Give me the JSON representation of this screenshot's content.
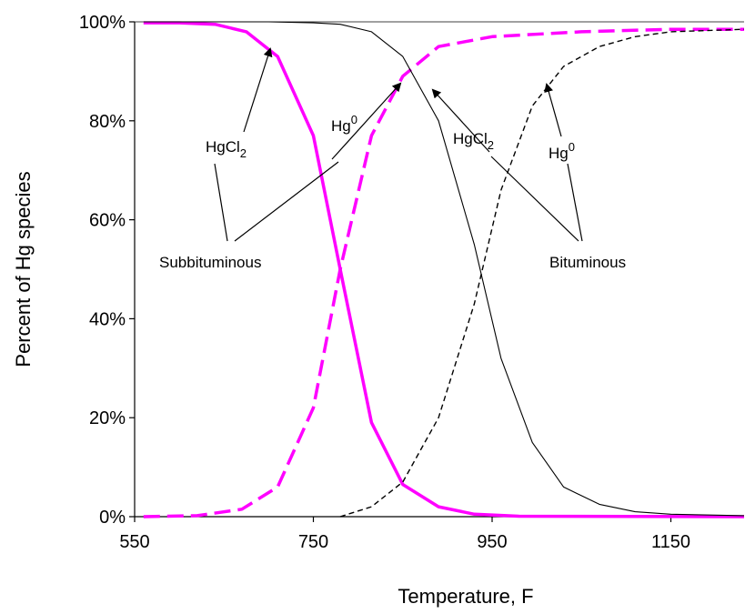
{
  "chart_data": {
    "type": "line",
    "xlabel": "Temperature, F",
    "ylabel": "Percent of Hg species",
    "xlim": [
      550,
      1250
    ],
    "ylim": [
      0,
      100
    ],
    "x_ticks": [
      "550",
      "750",
      "950",
      "1150"
    ],
    "x_tick_values": [
      550,
      750,
      950,
      1150
    ],
    "y_ticks": [
      "0%",
      "20%",
      "40%",
      "60%",
      "80%",
      "100%"
    ],
    "y_tick_values": [
      0,
      20,
      40,
      60,
      80,
      100
    ],
    "grid": false,
    "series": [
      {
        "key": "sub_hgcl2",
        "coal": "Subbituminous",
        "species": "HgCl2",
        "color": "#ff00ff",
        "style": "solid-thick",
        "points": [
          [
            560,
            99.8
          ],
          [
            600,
            99.8
          ],
          [
            640,
            99.5
          ],
          [
            675,
            98
          ],
          [
            710,
            93
          ],
          [
            750,
            77
          ],
          [
            780,
            50
          ],
          [
            815,
            19
          ],
          [
            850,
            6.5
          ],
          [
            890,
            2
          ],
          [
            930,
            0.5
          ],
          [
            980,
            0.1
          ],
          [
            1250,
            0
          ]
        ]
      },
      {
        "key": "sub_hg0",
        "coal": "Subbituminous",
        "species": "Hg0",
        "color": "#ff00ff",
        "style": "dashed-thick",
        "points": [
          [
            560,
            0
          ],
          [
            620,
            0.2
          ],
          [
            670,
            1.5
          ],
          [
            710,
            6
          ],
          [
            750,
            22
          ],
          [
            780,
            50
          ],
          [
            815,
            77
          ],
          [
            850,
            89
          ],
          [
            890,
            95
          ],
          [
            950,
            97
          ],
          [
            1050,
            98
          ],
          [
            1150,
            98.5
          ],
          [
            1250,
            98.5
          ]
        ]
      },
      {
        "key": "bit_hgcl2",
        "coal": "Bituminous",
        "species": "HgCl2",
        "color": "#000000",
        "style": "solid-thin",
        "points": [
          [
            560,
            100
          ],
          [
            700,
            100
          ],
          [
            750,
            99.8
          ],
          [
            780,
            99.5
          ],
          [
            815,
            98
          ],
          [
            850,
            93
          ],
          [
            890,
            80
          ],
          [
            930,
            55
          ],
          [
            960,
            32
          ],
          [
            995,
            15
          ],
          [
            1030,
            6
          ],
          [
            1070,
            2.5
          ],
          [
            1110,
            1
          ],
          [
            1150,
            0.5
          ],
          [
            1250,
            0.2
          ]
        ]
      },
      {
        "key": "bit_hg0",
        "coal": "Bituminous",
        "species": "Hg0",
        "color": "#000000",
        "style": "dashed-thin",
        "points": [
          [
            780,
            0
          ],
          [
            815,
            2
          ],
          [
            850,
            7
          ],
          [
            890,
            20
          ],
          [
            930,
            43
          ],
          [
            960,
            66
          ],
          [
            995,
            83
          ],
          [
            1030,
            91
          ],
          [
            1070,
            95
          ],
          [
            1110,
            97
          ],
          [
            1150,
            98
          ],
          [
            1250,
            98.5
          ]
        ]
      }
    ]
  },
  "annotations": {
    "sub_hgcl2_label": {
      "base": "HgCl",
      "sub": "2"
    },
    "sub_hg0_label": {
      "base": "Hg",
      "sup": "0"
    },
    "bit_hgcl2_label": {
      "base": "HgCl",
      "sub": "2"
    },
    "bit_hg0_label": {
      "base": "Hg",
      "sup": "0"
    },
    "subbituminous": "Subbituminous",
    "bituminous": "Bituminous"
  }
}
